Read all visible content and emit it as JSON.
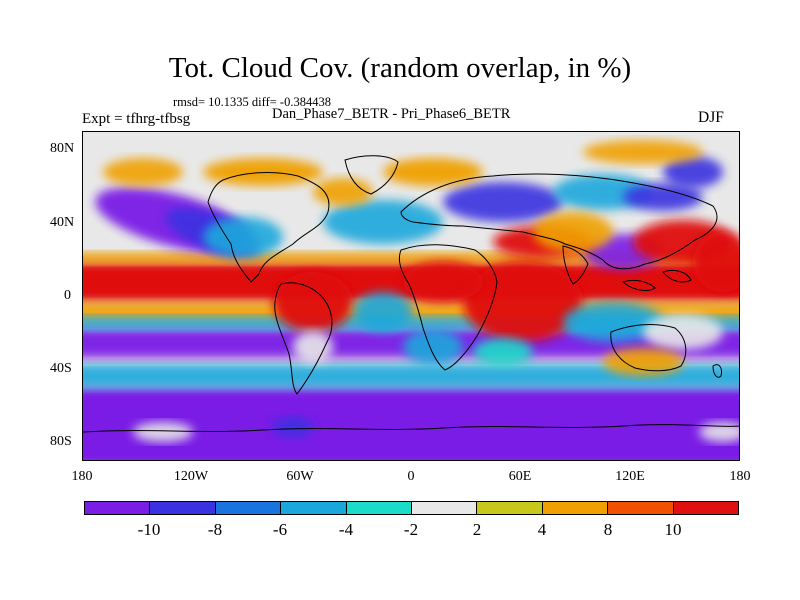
{
  "title": "Tot. Cloud Cov. (random overlap, in %)",
  "stats": "rmsd= 10.1335 diff= -0.384438",
  "expt": "Expt = tfhrg-tfbsg",
  "diff_name": "Dan_Phase7_BETR - Pri_Phase6_BETR",
  "season": "DJF",
  "lat_labels": [
    "80N",
    "40N",
    "0",
    "40S",
    "80S"
  ],
  "lon_labels": [
    "180",
    "120W",
    "60W",
    "0",
    "60E",
    "120E",
    "180"
  ],
  "colorbar": {
    "levels": [
      "-10",
      "-8",
      "-6",
      "-4",
      "-2",
      "2",
      "4",
      "8",
      "10"
    ],
    "colors": [
      "#7a1ee6",
      "#3a32e0",
      "#1a74e0",
      "#1aa8dc",
      "#1adcc8",
      "#e8e8e8",
      "#c8c81a",
      "#f0a000",
      "#f05000",
      "#e01010"
    ]
  },
  "palette": {
    "deep_negative": "#7a1ee6",
    "negative": "#3a32e0",
    "mid_negative": "#1aa8dc",
    "slight_negative": "#1adcc8",
    "neutral": "#e8e8e8",
    "positive": "#f0a000",
    "strong_positive": "#e01010"
  }
}
